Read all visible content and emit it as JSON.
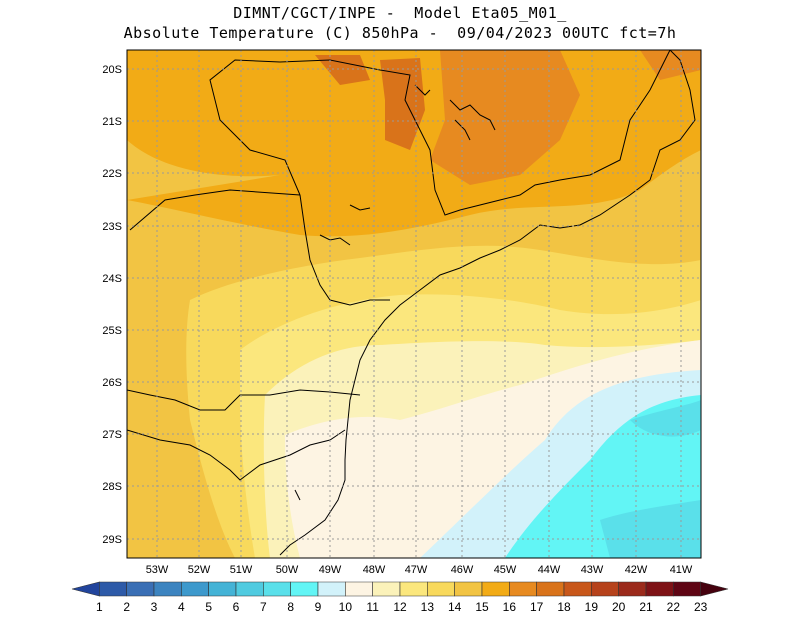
{
  "header": {
    "line1": "DIMNT/CGCT/INPE -  Model Eta05_M01_",
    "line2": "Absolute Temperature (C) 850hPa -  09/04/2023 00UTC fct=7h"
  },
  "map": {
    "lat_labels": [
      "20S",
      "21S",
      "22S",
      "23S",
      "24S",
      "25S",
      "26S",
      "27S",
      "28S",
      "29S"
    ],
    "lon_labels": [
      "53W",
      "52W",
      "51W",
      "50W",
      "49W",
      "48W",
      "47W",
      "46W",
      "45W",
      "44W",
      "43W",
      "42W",
      "41W"
    ]
  },
  "colorbar": {
    "labels": [
      "1",
      "2",
      "3",
      "4",
      "5",
      "6",
      "7",
      "8",
      "9",
      "10",
      "11",
      "12",
      "13",
      "14",
      "15",
      "16",
      "17",
      "18",
      "19",
      "20",
      "21",
      "22",
      "23"
    ],
    "colors": [
      "#21449c",
      "#2d5aa8",
      "#3a6fb5",
      "#3c84c0",
      "#3d99cc",
      "#44b3d6",
      "#50cbe0",
      "#5ae0ea",
      "#62f5f5",
      "#d2f2fa",
      "#fdf4e3",
      "#fbf2ba",
      "#fbe77d",
      "#f8d95c",
      "#f2c443",
      "#f2ab16",
      "#e78a20",
      "#d9731a",
      "#c8571a",
      "#b6421b",
      "#9b2a1b",
      "#7e1216",
      "#5f0514",
      "#46020f"
    ]
  }
}
